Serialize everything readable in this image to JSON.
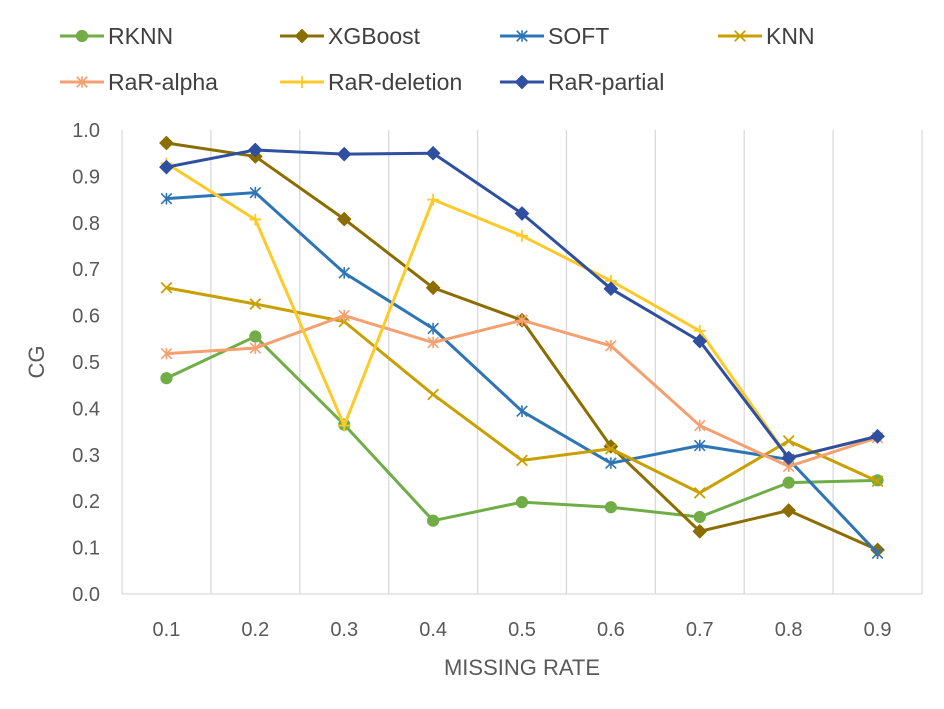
{
  "chart_data": {
    "type": "line",
    "title": "",
    "xlabel": "MISSING RATE",
    "ylabel": "CG",
    "x": [
      "0.1",
      "0.2",
      "0.3",
      "0.4",
      "0.5",
      "0.6",
      "0.7",
      "0.8",
      "0.9"
    ],
    "ylim": [
      0,
      1.0
    ],
    "yticks": [
      "0.0",
      "0.1",
      "0.2",
      "0.3",
      "0.4",
      "0.5",
      "0.6",
      "0.7",
      "0.8",
      "0.9",
      "1.0"
    ],
    "grid": "vertical",
    "legend_position": "top",
    "series": [
      {
        "name": "RKNN",
        "color": "#70AD47",
        "marker": "circle",
        "values": [
          0.465,
          0.555,
          0.365,
          0.158,
          0.198,
          0.187,
          0.166,
          0.24,
          0.245
        ]
      },
      {
        "name": "XGBoost",
        "color": "#8C6D00",
        "marker": "diamond",
        "values": [
          0.972,
          0.943,
          0.808,
          0.66,
          0.59,
          0.318,
          0.135,
          0.18,
          0.095
        ]
      },
      {
        "name": "SOFT",
        "color": "#2E75B6",
        "marker": "asterisk",
        "values": [
          0.852,
          0.865,
          0.692,
          0.572,
          0.394,
          0.282,
          0.32,
          0.29,
          0.088
        ]
      },
      {
        "name": "KNN",
        "color": "#C9A000",
        "marker": "x",
        "values": [
          0.66,
          0.625,
          0.587,
          0.43,
          0.288,
          0.313,
          0.218,
          0.33,
          0.243
        ]
      },
      {
        "name": "RaR-alpha",
        "color": "#F4A070",
        "marker": "asterisk",
        "values": [
          0.518,
          0.53,
          0.6,
          0.542,
          0.59,
          0.535,
          0.363,
          0.275,
          0.337
        ]
      },
      {
        "name": "RaR-deletion",
        "color": "#FFCA28",
        "marker": "plus",
        "values": [
          0.928,
          0.807,
          0.363,
          0.85,
          0.772,
          0.675,
          0.567,
          0.293,
          0.34
        ]
      },
      {
        "name": "RaR-partial",
        "color": "#2F4FA0",
        "marker": "diamond",
        "values": [
          0.92,
          0.957,
          0.948,
          0.95,
          0.82,
          0.658,
          0.545,
          0.293,
          0.34
        ]
      }
    ]
  }
}
